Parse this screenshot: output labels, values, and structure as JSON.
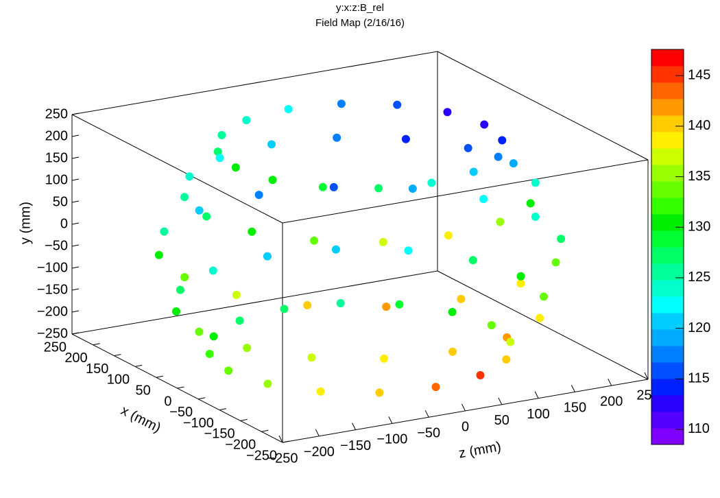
{
  "chart_data": {
    "type": "scatter3d",
    "title": "y:x:z:B_rel",
    "subtitle": "Field Map (2/16/16)",
    "x_label": "x (mm)",
    "y_label": "y (mm)",
    "z_label": "z (mm)",
    "xlim": [
      -250,
      250
    ],
    "ylim": [
      -250,
      250
    ],
    "zlim": [
      -250,
      250
    ],
    "xticks": [
      {
        "value": -250,
        "label": "−250"
      },
      {
        "value": -200,
        "label": "−200"
      },
      {
        "value": -150,
        "label": "−150"
      },
      {
        "value": -100,
        "label": "−100"
      },
      {
        "value": -50,
        "label": "−50"
      },
      0,
      50,
      100,
      150,
      200,
      250
    ],
    "yticks": [
      {
        "value": -250,
        "label": "−250"
      },
      {
        "value": -200,
        "label": "−200"
      },
      {
        "value": -150,
        "label": "−150"
      },
      {
        "value": -100,
        "label": "−100"
      },
      {
        "value": -50,
        "label": "−50"
      },
      0,
      50,
      100,
      150,
      200,
      250
    ],
    "zticks": [
      {
        "value": -250,
        "label": "−250"
      },
      {
        "value": -200,
        "label": "−200"
      },
      {
        "value": -150,
        "label": "−150"
      },
      {
        "value": -100,
        "label": "−100"
      },
      {
        "value": -50,
        "label": "−50"
      },
      0,
      50,
      100,
      150,
      200,
      250
    ],
    "clim": [
      108.5,
      147.6
    ],
    "cticks": [
      110,
      115,
      120,
      125,
      130,
      135,
      140,
      145
    ],
    "palette": [
      "#7f00ff",
      "#5500ff",
      "#2a00ff",
      "#0020ff",
      "#0050ff",
      "#0080ff",
      "#00aaff",
      "#00ccff",
      "#00ffff",
      "#00ffcc",
      "#00ff99",
      "#00ff66",
      "#00ff33",
      "#00ee00",
      "#33ff00",
      "#66ff00",
      "#99ff00",
      "#ccff00",
      "#ffee00",
      "#ffcc00",
      "#ff9900",
      "#ff6600",
      "#ff3300",
      "#ff0000"
    ],
    "x": [
      170,
      157,
      120,
      65,
      0,
      -65,
      -120,
      -157,
      -170,
      -157,
      -120,
      -65,
      0,
      65,
      120,
      157,
      210,
      194,
      148,
      80,
      0,
      -80,
      -148,
      -194,
      -210,
      -194,
      -148,
      -80,
      0,
      80,
      148,
      194,
      240,
      222,
      170,
      92,
      0,
      -92,
      -170,
      -222,
      -240,
      -222,
      -170,
      -92,
      0,
      92,
      170,
      222,
      220,
      203,
      156,
      84,
      0,
      -84,
      -156,
      -203,
      -220,
      -203,
      -156,
      -84,
      0,
      84,
      156,
      203,
      180,
      166,
      127,
      69,
      0,
      -69,
      -127,
      -166,
      -180,
      -166,
      -127,
      -69,
      0,
      69,
      127,
      166
    ],
    "y": [
      230,
      230,
      230,
      230,
      230,
      230,
      230,
      230,
      230,
      230,
      230,
      230,
      230,
      230,
      230,
      230,
      130,
      130,
      130,
      130,
      130,
      130,
      130,
      130,
      130,
      130,
      130,
      130,
      130,
      130,
      130,
      130,
      0,
      0,
      0,
      0,
      0,
      0,
      0,
      0,
      0,
      0,
      0,
      0,
      0,
      0,
      0,
      0,
      -130,
      -130,
      -130,
      -130,
      -130,
      -130,
      -130,
      -130,
      -130,
      -130,
      -130,
      -130,
      -130,
      -130,
      -130,
      -130,
      -230,
      -230,
      -230,
      -230,
      -230,
      -230,
      -230,
      -230,
      -230,
      -230,
      -230,
      -230,
      -230,
      -230,
      -230,
      -230
    ],
    "z": [
      0,
      65,
      120,
      157,
      170,
      157,
      120,
      65,
      0,
      -65,
      -120,
      -157,
      -170,
      -157,
      -120,
      -65,
      0,
      80,
      148,
      194,
      210,
      194,
      148,
      80,
      0,
      -80,
      -148,
      -194,
      -210,
      -194,
      -148,
      -80,
      0,
      92,
      170,
      222,
      240,
      222,
      170,
      92,
      0,
      -92,
      -170,
      -222,
      -240,
      -222,
      -170,
      -92,
      0,
      84,
      156,
      203,
      220,
      203,
      156,
      84,
      0,
      -84,
      -156,
      -203,
      -220,
      -203,
      -156,
      -84,
      0,
      69,
      127,
      166,
      180,
      166,
      127,
      69,
      0,
      -69,
      -127,
      -166,
      -180,
      -166,
      -127,
      -69
    ],
    "values": [
      122,
      118,
      116,
      113,
      112,
      115,
      118,
      120,
      124,
      127,
      129,
      131,
      130,
      128,
      126,
      124,
      120,
      117,
      115,
      116,
      119,
      124,
      130,
      135,
      138,
      137,
      134,
      131,
      128,
      126,
      124,
      122,
      118,
      116,
      119,
      122,
      124,
      128,
      134,
      138,
      141,
      142,
      140,
      137,
      133,
      130,
      126,
      121,
      121,
      120,
      123,
      127,
      130,
      133,
      138,
      142,
      140,
      139,
      137,
      135,
      133,
      131,
      127,
      124,
      127,
      126,
      129,
      131,
      133,
      137,
      141,
      145,
      143,
      140,
      138,
      136,
      134,
      132,
      130,
      128
    ]
  }
}
